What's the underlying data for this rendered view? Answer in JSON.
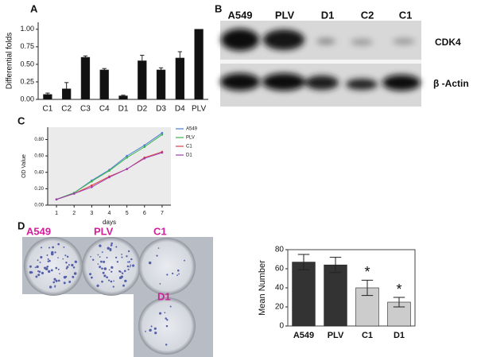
{
  "chart_data": [
    {
      "type": "bar",
      "panel": "A",
      "y_label": "Differential folds",
      "categories": [
        "C1",
        "C2",
        "C3",
        "C4",
        "D1",
        "D2",
        "D3",
        "D4",
        "PLV"
      ],
      "values": [
        0.07,
        0.15,
        0.6,
        0.42,
        0.05,
        0.55,
        0.42,
        0.59,
        1.0
      ],
      "errors": [
        0.02,
        0.09,
        0.02,
        0.02,
        0.01,
        0.08,
        0.03,
        0.09,
        0
      ],
      "color": "#111111",
      "ylim": [
        0,
        1.1
      ],
      "yticks": [
        {
          "value": 0,
          "label": "0.00"
        },
        {
          "value": 0.25,
          "label": "0.25"
        },
        {
          "value": 0.5,
          "label": "0.50"
        },
        {
          "value": 0.75,
          "label": "0.75"
        },
        {
          "value": 1,
          "label": "1.00"
        }
      ]
    },
    {
      "type": "line",
      "panel": "C",
      "x_label": "days",
      "y_label": "OD Value",
      "x": [
        1,
        2,
        3,
        4,
        5,
        6,
        7
      ],
      "xlim": [
        0.5,
        7.5
      ],
      "xticks": [
        1,
        2,
        3,
        4,
        5,
        6,
        7
      ],
      "ylim": [
        0,
        0.95
      ],
      "yticks": [
        {
          "value": 0,
          "label": "0.00"
        },
        {
          "value": 0.2,
          "label": "0.20"
        },
        {
          "value": 0.4,
          "label": "0.40"
        },
        {
          "value": 0.6,
          "label": "0.60"
        },
        {
          "value": 0.8,
          "label": "0.80"
        }
      ],
      "series": [
        {
          "name": "A549",
          "color": "#4a7fd4",
          "values": [
            0.07,
            0.15,
            0.3,
            0.43,
            0.6,
            0.73,
            0.88
          ]
        },
        {
          "name": "PLV",
          "color": "#3cb44b",
          "values": [
            0.07,
            0.15,
            0.29,
            0.42,
            0.58,
            0.71,
            0.86
          ]
        },
        {
          "name": "C1",
          "color": "#e04040",
          "values": [
            0.07,
            0.14,
            0.24,
            0.35,
            0.44,
            0.58,
            0.65
          ]
        },
        {
          "name": "D1",
          "color": "#9b3fb5",
          "values": [
            0.07,
            0.14,
            0.22,
            0.34,
            0.44,
            0.57,
            0.64
          ]
        }
      ]
    },
    {
      "type": "bar",
      "y_label": "Mean Number",
      "categories": [
        "A549",
        "PLV",
        "C1",
        "D1"
      ],
      "values": [
        67,
        64,
        40,
        25
      ],
      "errors": [
        8,
        8,
        8,
        5
      ],
      "colors": [
        "#333333",
        "#333333",
        "#cccccc",
        "#cccccc"
      ],
      "ylim": [
        0,
        80
      ],
      "yticks": [
        0,
        20,
        40,
        60,
        80
      ],
      "annotations": [
        {
          "category": "C1",
          "text": "*"
        },
        {
          "category": "D1",
          "text": "*"
        }
      ]
    }
  ],
  "blot": {
    "label": "B",
    "lanes": [
      "A549",
      "PLV",
      "D1",
      "C2",
      "C1"
    ],
    "rows": [
      "CDK4",
      "β -Actin"
    ]
  },
  "colony": {
    "label": "D",
    "wells": [
      "A549",
      "PLV",
      "C1",
      "D1"
    ]
  }
}
